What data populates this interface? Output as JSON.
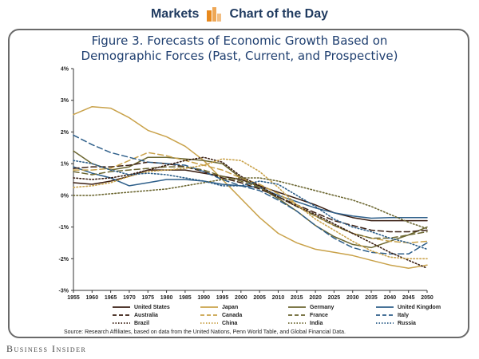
{
  "header": {
    "left_text": "Markets",
    "right_text": "Chart of the Day",
    "logo_color": "#e8891d",
    "text_color": "#1f3a5f"
  },
  "figure": {
    "title_line1": "Figure 3. Forecasts of Economic Growth Based on",
    "title_line2": "Demographic Forces (Past, Current, and Prospective)"
  },
  "source": "Source: Research Affiliates, based on data from the United Nations, Penn World Table, and Global Financial Data.",
  "footer_brand": "Business Insider",
  "chart_data": {
    "type": "line",
    "grid": false,
    "legend_position": "bottom",
    "x": [
      1955,
      1960,
      1965,
      1970,
      1975,
      1980,
      1985,
      1990,
      1995,
      2000,
      2005,
      2010,
      2015,
      2020,
      2025,
      2030,
      2035,
      2040,
      2045,
      2050
    ],
    "xlim": [
      1955,
      2050
    ],
    "ylim": [
      -3,
      4
    ],
    "yticks": [
      4,
      3,
      2,
      1,
      0,
      -1,
      -2,
      -3
    ],
    "ytick_labels": [
      "4%",
      "3%",
      "2%",
      "1%",
      "0%",
      "-1%",
      "-2%",
      "-3%"
    ],
    "series": [
      {
        "name": "United States",
        "color": "#3a1e12",
        "dash": "solid",
        "values": [
          0.4,
          0.35,
          0.45,
          0.6,
          0.8,
          0.8,
          0.8,
          0.7,
          0.6,
          0.5,
          0.3,
          0.1,
          -0.1,
          -0.3,
          -0.55,
          -0.7,
          -0.8,
          -0.8,
          -0.8,
          -0.8
        ]
      },
      {
        "name": "Japan",
        "color": "#c9a24a",
        "dash": "solid",
        "values": [
          2.55,
          2.8,
          2.75,
          2.45,
          2.05,
          1.85,
          1.55,
          1.1,
          0.5,
          -0.1,
          -0.7,
          -1.2,
          -1.5,
          -1.7,
          -1.8,
          -1.9,
          -2.05,
          -2.2,
          -2.3,
          -2.2
        ]
      },
      {
        "name": "Germany",
        "color": "#6b6630",
        "dash": "solid",
        "values": [
          1.4,
          1.0,
          0.8,
          0.9,
          1.2,
          1.2,
          1.15,
          1.1,
          1.0,
          0.55,
          0.25,
          -0.1,
          -0.5,
          -0.95,
          -1.3,
          -1.55,
          -1.65,
          -1.45,
          -1.25,
          -1.0
        ]
      },
      {
        "name": "United Kingdom",
        "color": "#2e5f8a",
        "dash": "solid",
        "values": [
          0.9,
          0.7,
          0.55,
          0.3,
          0.4,
          0.5,
          0.5,
          0.45,
          0.35,
          0.3,
          0.25,
          0.0,
          -0.2,
          -0.4,
          -0.55,
          -0.65,
          -0.72,
          -0.7,
          -0.7,
          -0.7
        ]
      },
      {
        "name": "Australia",
        "color": "#3a1e12",
        "dash": "dashed",
        "values": [
          0.85,
          0.9,
          0.9,
          0.95,
          1.05,
          1.0,
          0.9,
          0.75,
          0.55,
          0.4,
          0.2,
          -0.05,
          -0.3,
          -0.55,
          -0.8,
          -0.95,
          -1.1,
          -1.15,
          -1.15,
          -1.1
        ]
      },
      {
        "name": "Canada",
        "color": "#c9a24a",
        "dash": "dashed",
        "values": [
          0.8,
          0.8,
          0.85,
          1.1,
          1.35,
          1.25,
          1.1,
          0.95,
          0.8,
          0.55,
          0.35,
          0.05,
          -0.3,
          -0.65,
          -0.95,
          -1.2,
          -1.35,
          -1.45,
          -1.5,
          -1.45
        ]
      },
      {
        "name": "France",
        "color": "#6b6630",
        "dash": "dashed",
        "values": [
          0.75,
          0.65,
          0.75,
          0.8,
          0.85,
          0.9,
          0.9,
          0.8,
          0.6,
          0.45,
          0.25,
          -0.05,
          -0.35,
          -0.65,
          -0.95,
          -1.2,
          -1.35,
          -1.35,
          -1.25,
          -1.15
        ]
      },
      {
        "name": "Italy",
        "color": "#2e5f8a",
        "dash": "dashed",
        "values": [
          1.9,
          1.6,
          1.35,
          1.2,
          1.05,
          1.0,
          0.95,
          0.75,
          0.5,
          0.3,
          0.15,
          -0.15,
          -0.5,
          -0.95,
          -1.35,
          -1.65,
          -1.8,
          -1.85,
          -1.85,
          -1.5
        ]
      },
      {
        "name": "Brazil",
        "color": "#3a1e12",
        "dash": "dotted",
        "values": [
          0.55,
          0.5,
          0.55,
          0.65,
          0.8,
          0.95,
          1.1,
          1.2,
          1.05,
          0.6,
          0.3,
          -0.05,
          -0.35,
          -0.6,
          -0.9,
          -1.2,
          -1.5,
          -1.8,
          -2.05,
          -2.3
        ]
      },
      {
        "name": "China",
        "color": "#c9a24a",
        "dash": "dotted",
        "values": [
          0.25,
          0.3,
          0.4,
          0.6,
          0.75,
          0.8,
          0.85,
          0.95,
          1.15,
          1.1,
          0.75,
          0.25,
          -0.3,
          -0.75,
          -1.1,
          -1.45,
          -1.75,
          -1.95,
          -2.0,
          -2.0
        ]
      },
      {
        "name": "India",
        "color": "#6b6630",
        "dash": "dotted",
        "values": [
          0.0,
          0.0,
          0.05,
          0.1,
          0.15,
          0.2,
          0.3,
          0.4,
          0.5,
          0.55,
          0.55,
          0.45,
          0.3,
          0.15,
          0.0,
          -0.15,
          -0.35,
          -0.6,
          -0.85,
          -1.05
        ]
      },
      {
        "name": "Russia",
        "color": "#2e5f8a",
        "dash": "dotted",
        "values": [
          1.1,
          1.0,
          0.8,
          0.65,
          0.7,
          0.65,
          0.55,
          0.45,
          0.3,
          0.3,
          0.45,
          0.35,
          0.0,
          -0.35,
          -0.75,
          -1.0,
          -1.15,
          -1.35,
          -1.5,
          -1.7
        ]
      }
    ]
  }
}
